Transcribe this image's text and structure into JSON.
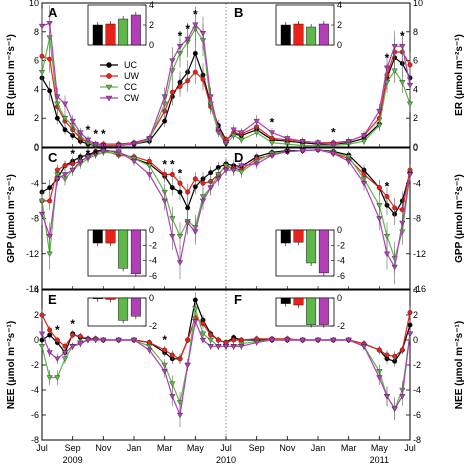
{
  "chart_data": {
    "type": "line",
    "colors": {
      "UC": "#000000",
      "UW": "#e5231b",
      "CC": "#5fb64a",
      "CW": "#b23fb6"
    },
    "legend": [
      "UC",
      "UW",
      "CC",
      "CW"
    ],
    "legend_placement": "inside panel A, center",
    "x_tick_labels": [
      "Jul",
      "Sep",
      "Nov",
      "Jan",
      "Mar",
      "May",
      "Jul",
      "Sep",
      "Nov",
      "Jan",
      "Mar",
      "May",
      "Jul"
    ],
    "year_labels": [
      "2009",
      "2010",
      "2011"
    ],
    "divider_at": "Jul 2010",
    "rows": [
      {
        "ylabel": "ER (μmol m⁻²s⁻¹)",
        "ylim": [
          0,
          10
        ],
        "yticks": [
          "0",
          "2",
          "4",
          "6",
          "8",
          "10"
        ],
        "panels": [
          {
            "label": "A",
            "x": [
              0,
              0.5,
              1,
              1.5,
              2,
              2.5,
              3,
              3.5,
              4,
              5,
              6,
              7,
              8,
              8.5,
              9,
              9.5,
              10,
              10.5,
              11,
              11.5,
              12
            ],
            "series": [
              {
                "name": "UC",
                "values": [
                  4.8,
                  3.9,
                  2.0,
                  1.2,
                  0.8,
                  0.4,
                  0.2,
                  0.1,
                  0.1,
                  0.1,
                  0.2,
                  0.4,
                  1.8,
                  3.5,
                  4.5,
                  5.2,
                  6.5,
                  5.0,
                  3.0,
                  1.5,
                  0.5
                ]
              },
              {
                "name": "UW",
                "values": [
                  6.3,
                  6.1,
                  2.8,
                  1.8,
                  1.2,
                  0.6,
                  0.3,
                  0.2,
                  0.2,
                  0.2,
                  0.3,
                  0.6,
                  2.5,
                  3.8,
                  4.2,
                  4.6,
                  5.2,
                  4.7,
                  2.8,
                  1.2,
                  0.5
                ]
              },
              {
                "name": "CC",
                "values": [
                  5.2,
                  7.6,
                  3.0,
                  2.0,
                  1.5,
                  0.8,
                  0.3,
                  0.1,
                  0.1,
                  0.1,
                  0.2,
                  0.5,
                  3.0,
                  5.3,
                  6.5,
                  7.3,
                  8.2,
                  7.4,
                  3.0,
                  1.0,
                  0.2
                ]
              },
              {
                "name": "CW",
                "values": [
                  8.4,
                  8.6,
                  3.5,
                  3.0,
                  1.8,
                  1.0,
                  0.5,
                  0.2,
                  0.1,
                  0.1,
                  0.2,
                  0.6,
                  3.5,
                  6.0,
                  7.0,
                  7.5,
                  8.5,
                  7.9,
                  3.5,
                  1.2,
                  0.3
                ]
              }
            ],
            "stars": [
              3,
              3.5,
              4,
              4.5,
              9,
              9.5,
              10
            ],
            "inset": {
              "ylim": [
                0,
                4
              ],
              "yticks": [
                "0",
                "2",
                "4"
              ],
              "values": [
                2.0,
                2.1,
                2.6,
                3.0
              ]
            }
          },
          {
            "label": "B",
            "x": [
              12,
              12.5,
              13,
              14,
              15,
              16,
              17,
              18,
              19,
              20,
              21,
              22,
              22.5,
              23,
              23.5,
              24
            ],
            "series": [
              {
                "name": "UC",
                "values": [
                  0.5,
                  0.9,
                  0.8,
                  1.2,
                  0.5,
                  0.4,
                  0.3,
                  0.2,
                  0.2,
                  0.3,
                  0.6,
                  1.6,
                  4.8,
                  6.2,
                  5.8,
                  4.8
                ]
              },
              {
                "name": "UW",
                "values": [
                  0.5,
                  1.0,
                  0.9,
                  1.4,
                  0.6,
                  0.5,
                  0.4,
                  0.3,
                  0.3,
                  0.4,
                  0.8,
                  2.0,
                  5.0,
                  6.6,
                  6.6,
                  5.7
                ]
              },
              {
                "name": "CC",
                "values": [
                  0.2,
                  0.8,
                  0.5,
                  1.0,
                  0.3,
                  0.2,
                  0.1,
                  0.1,
                  0.1,
                  0.2,
                  0.4,
                  1.5,
                  4.5,
                  5.3,
                  4.5,
                  3.0
                ]
              },
              {
                "name": "CW",
                "values": [
                  0.3,
                  1.2,
                  1.0,
                  1.8,
                  1.0,
                  0.6,
                  0.4,
                  0.3,
                  0.2,
                  0.4,
                  0.8,
                  2.5,
                  5.5,
                  7.0,
                  7.0,
                  4.3
                ]
              }
            ],
            "stars": [
              15,
              19,
              22.5,
              23.5
            ],
            "inset": {
              "ylim": [
                0,
                4
              ],
              "yticks": [
                "0",
                "2",
                "4"
              ],
              "values": [
                2.0,
                2.1,
                1.8,
                2.1
              ]
            }
          }
        ]
      },
      {
        "ylabel": "GPP (μmol m⁻²s⁻¹)",
        "ylim": [
          -16,
          0
        ],
        "yticks": [
          "-16",
          "-12",
          "-8",
          "-4",
          "0"
        ],
        "panels": [
          {
            "label": "C",
            "x": [
              0,
              0.5,
              1,
              1.5,
              2,
              2.5,
              3,
              3.5,
              4,
              5,
              6,
              7,
              8,
              8.5,
              9,
              9.5,
              10,
              10.5,
              11,
              11.5,
              12
            ],
            "series": [
              {
                "name": "UC",
                "values": [
                  -5.0,
                  -4.5,
                  -3.5,
                  -2.0,
                  -1.5,
                  -1.0,
                  -0.8,
                  -0.4,
                  -0.2,
                  -0.5,
                  -1.2,
                  -1.8,
                  -3.2,
                  -4.5,
                  -5.0,
                  -6.8,
                  -4.4,
                  -3.5,
                  -2.8,
                  -2.2,
                  -1.8
                ]
              },
              {
                "name": "UW",
                "values": [
                  -6.0,
                  -6.0,
                  -2.5,
                  -2.0,
                  -1.8,
                  -1.5,
                  -1.0,
                  -0.5,
                  -0.3,
                  -0.8,
                  -1.0,
                  -1.5,
                  -3.0,
                  -3.0,
                  -4.0,
                  -5.0,
                  -3.5,
                  -4.0,
                  -3.8,
                  -3.0,
                  -2.0
                ]
              },
              {
                "name": "CC",
                "values": [
                  -6.0,
                  -12.0,
                  -3.0,
                  -3.5,
                  -2.5,
                  -1.8,
                  -1.2,
                  -0.8,
                  -0.5,
                  -0.6,
                  -1.2,
                  -2.0,
                  -5.0,
                  -8.0,
                  -10.0,
                  -8.3,
                  -9.0,
                  -5.5,
                  -4.5,
                  -3.0,
                  -2.0
                ]
              },
              {
                "name": "CW",
                "values": [
                  -7.5,
                  -10.0,
                  -3.5,
                  -3.0,
                  -2.5,
                  -1.5,
                  -1.0,
                  -0.6,
                  -0.3,
                  -0.4,
                  -1.5,
                  -3.0,
                  -6.0,
                  -10.0,
                  -13.0,
                  -8.5,
                  -9.5,
                  -6.0,
                  -4.5,
                  -3.5,
                  -2.5
                ]
              }
            ],
            "stars": [
              2,
              3,
              3.5,
              8,
              8.5,
              9
            ],
            "inset": {
              "ylim": [
                -6,
                0
              ],
              "yticks": [
                "0",
                "-2",
                "-4",
                "-6"
              ],
              "values": [
                -1.7,
                -1.7,
                -5.0,
                -5.7
              ]
            }
          },
          {
            "label": "D",
            "x": [
              12,
              12.5,
              13,
              14,
              15,
              16,
              17,
              18,
              19,
              20,
              21,
              22,
              22.5,
              23,
              23.5,
              24
            ],
            "series": [
              {
                "name": "UC",
                "values": [
                  -1.8,
                  -2.0,
                  -2.1,
                  -1.0,
                  -0.5,
                  -0.3,
                  -0.3,
                  -0.2,
                  -0.4,
                  -0.8,
                  -2.5,
                  -4.5,
                  -6.5,
                  -7.5,
                  -6.0,
                  -2.8
                ]
              },
              {
                "name": "UW",
                "values": [
                  -2.0,
                  -2.3,
                  -2.5,
                  -1.2,
                  -0.8,
                  -0.4,
                  -0.3,
                  -0.2,
                  -0.6,
                  -1.2,
                  -3.0,
                  -4.5,
                  -5.5,
                  -6.8,
                  -7.0,
                  -2.5
                ]
              },
              {
                "name": "CC",
                "values": [
                  -2.0,
                  -2.5,
                  -2.7,
                  -1.5,
                  -0.6,
                  -0.4,
                  -0.3,
                  -0.2,
                  -0.5,
                  -1.0,
                  -3.5,
                  -6.5,
                  -10.0,
                  -12.5,
                  -9.5,
                  -3.0
                ]
              },
              {
                "name": "CW",
                "values": [
                  -2.5,
                  -2.5,
                  -2.0,
                  -1.8,
                  -0.8,
                  -0.4,
                  -0.3,
                  -0.2,
                  -0.6,
                  -1.5,
                  -4.0,
                  -8.0,
                  -12.0,
                  -13.5,
                  -8.5,
                  -3.0
                ]
              }
            ],
            "stars": [
              16,
              22.5
            ],
            "inset": {
              "ylim": [
                -6,
                0
              ],
              "yticks": [
                "0",
                "-2",
                "-4",
                "-6"
              ],
              "values": [
                -1.7,
                -1.6,
                -4.3,
                -5.6
              ]
            }
          }
        ]
      },
      {
        "ylabel": "NEE (μmol m⁻²s⁻¹)",
        "ylim": [
          -8,
          4
        ],
        "yticks": [
          "-8",
          "-6",
          "-4",
          "-2",
          "0",
          "2",
          "4"
        ],
        "panels": [
          {
            "label": "E",
            "x": [
              0,
              0.5,
              1,
              1.5,
              2,
              2.5,
              3,
              3.5,
              4,
              5,
              6,
              7,
              8,
              8.5,
              9,
              9.5,
              10,
              10.5,
              11,
              11.5,
              12
            ],
            "series": [
              {
                "name": "UC",
                "values": [
                  0.0,
                  0.4,
                  -0.2,
                  -1.0,
                  0.5,
                  0.2,
                  0.1,
                  0.1,
                  0.0,
                  0.0,
                  0.0,
                  -0.2,
                  -1.0,
                  -1.5,
                  -1.5,
                  0.0,
                  3.2,
                  1.6,
                  0.5,
                  0.0,
                  -0.2
                ]
              },
              {
                "name": "UW",
                "values": [
                  2.0,
                  0.8,
                  0.0,
                  -0.5,
                  0.4,
                  0.3,
                  0.1,
                  0.1,
                  0.0,
                  0.0,
                  0.0,
                  -0.2,
                  -0.8,
                  -1.2,
                  -1.5,
                  0.0,
                  1.8,
                  1.3,
                  0.4,
                  0.0,
                  -0.2
                ]
              },
              {
                "name": "CC",
                "values": [
                  -0.5,
                  -3.0,
                  -3.0,
                  -1.5,
                  -0.5,
                  -0.2,
                  0.0,
                  0.0,
                  0.0,
                  0.0,
                  0.0,
                  -0.5,
                  -2.0,
                  -3.5,
                  -5.0,
                  -2.0,
                  2.5,
                  0.5,
                  0.0,
                  -0.5,
                  -0.5
                ]
              },
              {
                "name": "CW",
                "values": [
                  0.5,
                  -1.0,
                  -1.5,
                  -1.0,
                  -0.5,
                  -0.3,
                  0.0,
                  0.0,
                  0.0,
                  0.0,
                  0.0,
                  -0.8,
                  -2.5,
                  -4.5,
                  -6.0,
                  -2.0,
                  1.5,
                  0.0,
                  -0.5,
                  -0.5,
                  -0.5
                ]
              }
            ],
            "stars": [
              1,
              2,
              8
            ],
            "inset": {
              "ylim": [
                -2,
                0
              ],
              "yticks": [
                "0",
                "-2"
              ],
              "values": [
                -0.05,
                -0.1,
                -1.6,
                -1.3
              ]
            }
          },
          {
            "label": "F",
            "x": [
              12,
              12.5,
              13,
              14,
              15,
              16,
              17,
              18,
              19,
              20,
              21,
              22,
              22.5,
              23,
              23.5,
              24
            ],
            "series": [
              {
                "name": "UC",
                "values": [
                  -0.2,
                  0.2,
                  0.0,
                  0.0,
                  0.0,
                  0.0,
                  0.0,
                  0.0,
                  0.0,
                  0.0,
                  -0.3,
                  -0.8,
                  -1.5,
                  -1.7,
                  -0.8,
                  1.2
                ]
              },
              {
                "name": "UW",
                "values": [
                  -0.2,
                  0.0,
                  0.0,
                  0.1,
                  0.1,
                  0.1,
                  0.0,
                  0.0,
                  0.0,
                  0.0,
                  -0.3,
                  -0.8,
                  -1.2,
                  -1.3,
                  -0.8,
                  2.2
                ]
              },
              {
                "name": "CC",
                "values": [
                  -0.5,
                  -0.5,
                  -0.3,
                  -0.1,
                  0.0,
                  0.0,
                  0.0,
                  0.0,
                  0.0,
                  0.0,
                  -0.5,
                  -2.5,
                  -4.5,
                  -5.5,
                  -4.0,
                  0.5
                ]
              },
              {
                "name": "CW",
                "values": [
                  -0.5,
                  -0.5,
                  -0.5,
                  -0.2,
                  0.0,
                  0.0,
                  0.0,
                  0.0,
                  0.0,
                  0.0,
                  -0.5,
                  -3.0,
                  -4.5,
                  -5.5,
                  -4.5,
                  0.5
                ]
              }
            ],
            "stars": [],
            "inset": {
              "ylim": [
                -2,
                0
              ],
              "yticks": [
                "0",
                "-2"
              ],
              "values": [
                -0.4,
                -0.5,
                -1.9,
                -1.9
              ]
            }
          }
        ]
      }
    ]
  }
}
